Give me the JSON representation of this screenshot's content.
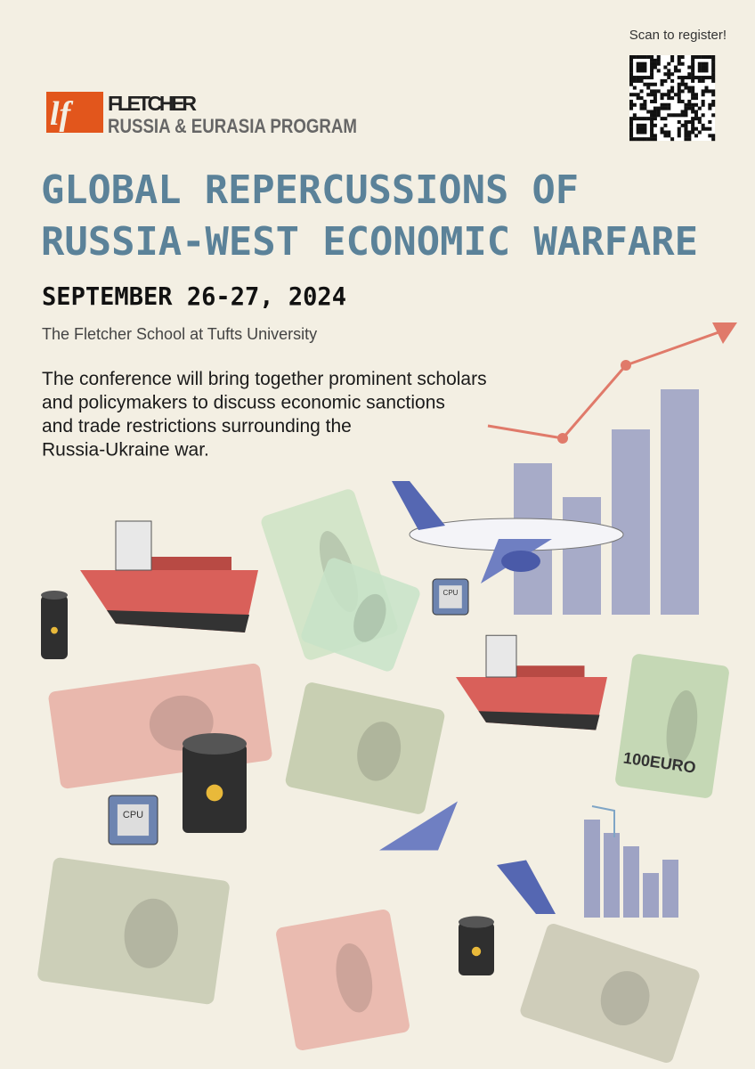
{
  "header": {
    "scan_prompt": "Scan to register!",
    "logo_name": "FLETCHER",
    "logo_program": "RUSSIA & EURASIA PROGRAM"
  },
  "title": {
    "lines": [
      "GLOBAL REPERCUSSIONS OF",
      "RUSSIA-WEST ECONOMIC WARFARE"
    ]
  },
  "date": "SEPTEMBER 26-27, 2024",
  "venue": "The Fletcher School at Tufts University",
  "description": {
    "lines": [
      "The conference will bring together prominent scholars",
      "and policymakers to discuss economic sanctions",
      "and trade restrictions surrounding the",
      "Russia-Ukraine war."
    ]
  },
  "illustration": {
    "chip_label": "CPU",
    "banknote_label": "100EURO"
  }
}
